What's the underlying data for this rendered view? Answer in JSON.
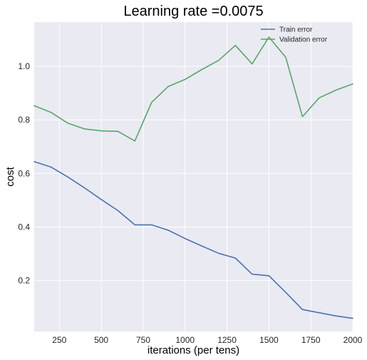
{
  "chart_data": {
    "type": "line",
    "title": "Learning rate =0.0075",
    "xlabel": "iterations (per tens)",
    "ylabel": "cost",
    "xlim": [
      100,
      2000
    ],
    "ylim": [
      0.01,
      1.165
    ],
    "x_ticks": [
      250,
      500,
      750,
      1000,
      1250,
      1500,
      1750,
      2000
    ],
    "x_tick_labels": [
      "250",
      "500",
      "750",
      "1000",
      "1250",
      "1500",
      "1750",
      "2000"
    ],
    "y_ticks": [
      0.2,
      0.4,
      0.6,
      0.8,
      1.0
    ],
    "y_tick_labels": [
      "0.2",
      "0.4",
      "0.6",
      "0.8",
      "1.0"
    ],
    "grid": true,
    "legend_position": "top-right",
    "x": [
      100,
      200,
      300,
      400,
      500,
      600,
      700,
      800,
      900,
      1000,
      1100,
      1200,
      1300,
      1400,
      1500,
      1600,
      1700,
      1800,
      1900,
      2000
    ],
    "series": [
      {
        "name": "Train error",
        "color": "#4c72b0",
        "values": [
          0.644,
          0.624,
          0.587,
          0.546,
          0.503,
          0.461,
          0.408,
          0.408,
          0.388,
          0.357,
          0.329,
          0.302,
          0.284,
          0.224,
          0.218,
          0.156,
          0.092,
          0.08,
          0.068,
          0.059
        ]
      },
      {
        "name": "Validation error",
        "color": "#55a868",
        "values": [
          0.853,
          0.828,
          0.788,
          0.766,
          0.759,
          0.757,
          0.721,
          0.865,
          0.925,
          0.951,
          0.988,
          1.022,
          1.078,
          1.009,
          1.109,
          1.034,
          0.812,
          0.882,
          0.911,
          0.934
        ]
      }
    ]
  },
  "colors": {
    "plot_background": "#eaeaf2",
    "grid": "#ffffff"
  }
}
